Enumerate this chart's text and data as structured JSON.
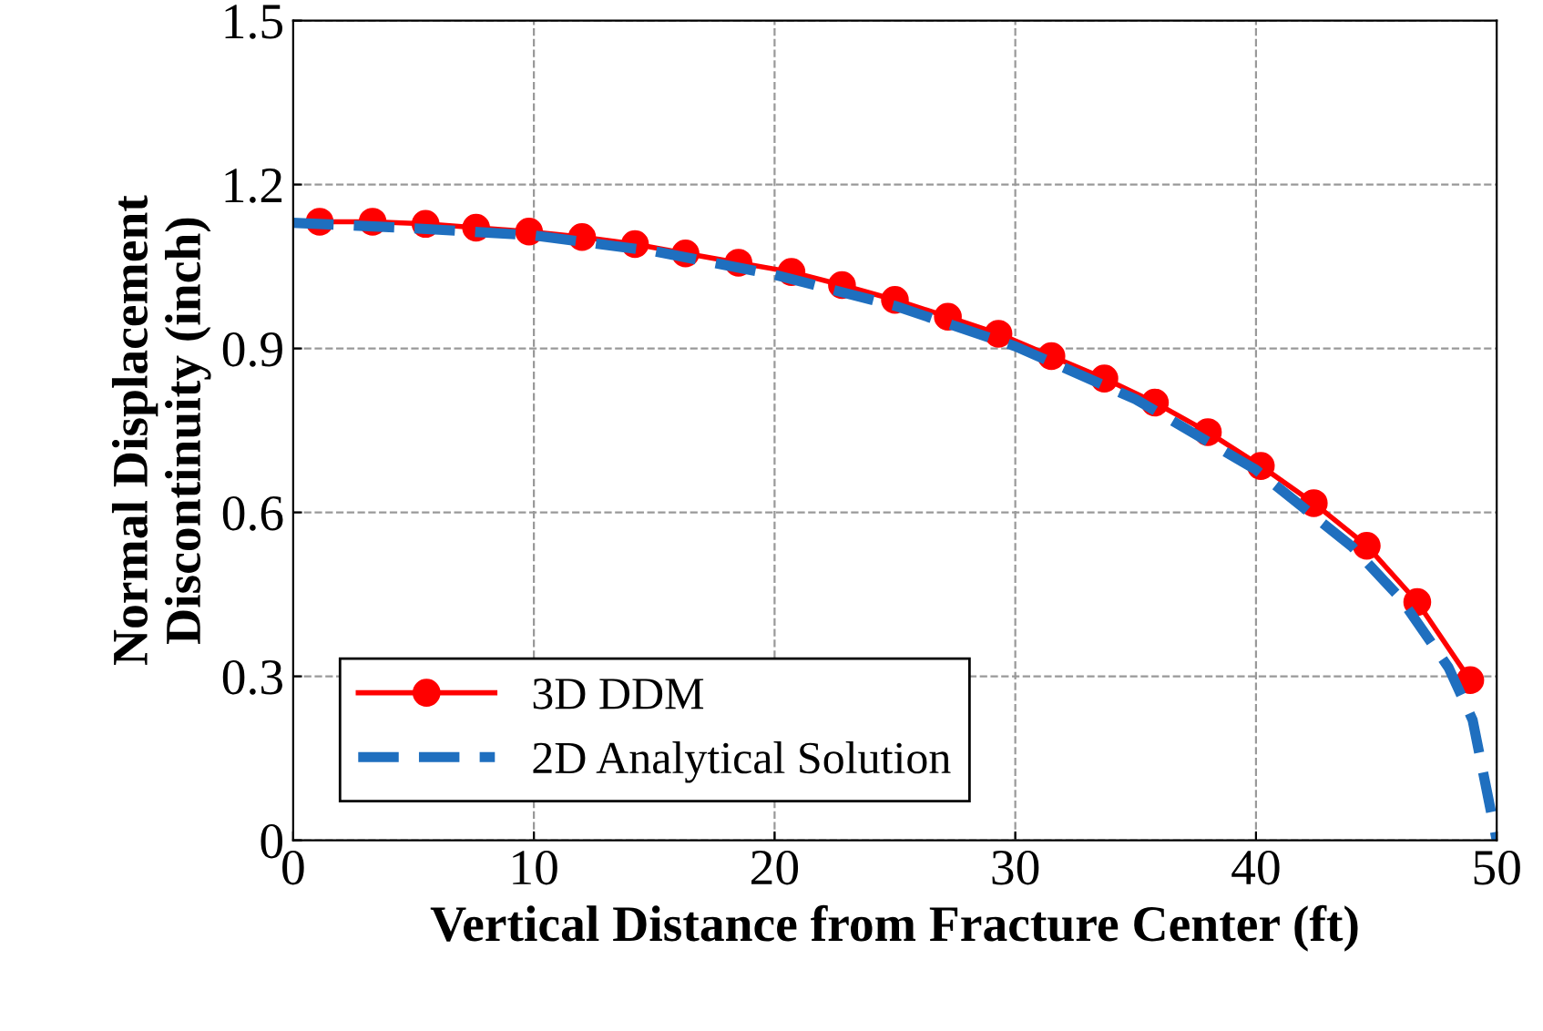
{
  "chart_data": {
    "type": "line",
    "xlabel": "Vertical Distance from Fracture Center (ft)",
    "ylabel": "Normal Displacement\nDiscontinuity (inch)",
    "xlim": [
      0,
      50
    ],
    "xticks": [
      0,
      10,
      20,
      30,
      40,
      50
    ],
    "ylim": [
      0,
      1.5
    ],
    "yticks": [
      0,
      0.3,
      0.6,
      0.9,
      1.2,
      1.5
    ],
    "grid": true,
    "legend": "bottom left",
    "series": [
      {
        "name": "3D DDM",
        "color": "#ff0000",
        "marker": "circle",
        "line_style": "solid",
        "x": [
          1.1,
          3.3,
          5.5,
          7.6,
          9.8,
          12,
          14.2,
          16.3,
          18.5,
          20.7,
          22.8,
          25,
          27.2,
          29.3,
          31.5,
          33.7,
          35.8,
          38,
          40.2,
          42.4,
          44.6,
          46.7,
          48.9
        ],
        "values": [
          1.132,
          1.132,
          1.128,
          1.121,
          1.114,
          1.104,
          1.091,
          1.074,
          1.057,
          1.04,
          1.016,
          0.989,
          0.958,
          0.927,
          0.886,
          0.845,
          0.801,
          0.747,
          0.685,
          0.617,
          0.539,
          0.436,
          0.293
        ]
      },
      {
        "name": "2D Analytical Solution",
        "color": "#1f6fbf",
        "marker": "none",
        "line_style": "dashed",
        "x": [
          0,
          5,
          10,
          15,
          20,
          25,
          30,
          35,
          40,
          44,
          46,
          48,
          49,
          50
        ],
        "values": [
          1.13,
          1.12,
          1.107,
          1.078,
          1.035,
          0.978,
          0.904,
          0.807,
          0.678,
          0.537,
          0.443,
          0.316,
          0.22,
          0.0
        ]
      }
    ]
  }
}
